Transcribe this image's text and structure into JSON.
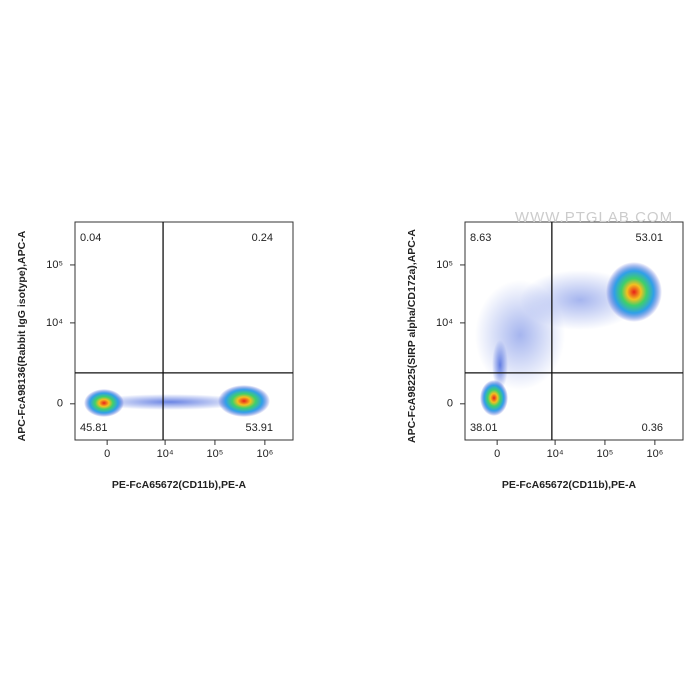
{
  "chart_data": [
    {
      "type": "scatter",
      "xlabel": "PE-FcA65672(CD11b),PE-A",
      "ylabel": "APC-FcA98136(Rabbit IgG isotype),APC-A",
      "xlim": [
        -2900,
        3660000
      ],
      "ylim": [
        -1600,
        550000
      ],
      "xticks": [
        0,
        {
          "value": 10000,
          "label": "10⁴"
        },
        {
          "value": 100000,
          "label": "10⁵"
        },
        {
          "value": 1000000,
          "label": "10⁶"
        }
      ],
      "yticks": [
        0,
        {
          "value": 10000,
          "label": "10⁴"
        },
        {
          "value": 100000,
          "label": "10⁵"
        }
      ],
      "gate_x": 9100,
      "gate_y": 1260,
      "quadrant_values": [
        0.04,
        0.24,
        45.81,
        53.91
      ]
    },
    {
      "type": "scatter",
      "xlabel": "PE-FcA65672(CD11b),PE-A",
      "ylabel": "APC-FcA98225(SIRP alpha/CD172a),APC-A",
      "watermark": "WWW.PTGLAB.COM",
      "xlim": [
        -2900,
        3660000
      ],
      "ylim": [
        -1600,
        550000
      ],
      "xticks": [
        0,
        {
          "value": 10000,
          "label": "10⁴"
        },
        {
          "value": 100000,
          "label": "10⁵"
        },
        {
          "value": 1000000,
          "label": "10⁶"
        }
      ],
      "yticks": [
        0,
        {
          "value": 10000,
          "label": "10⁴"
        },
        {
          "value": 100000,
          "label": "10⁵"
        }
      ],
      "gate_x": 8600,
      "gate_y": 1260,
      "quadrant_values": [
        8.63,
        53.01,
        38.01,
        0.36
      ]
    }
  ]
}
